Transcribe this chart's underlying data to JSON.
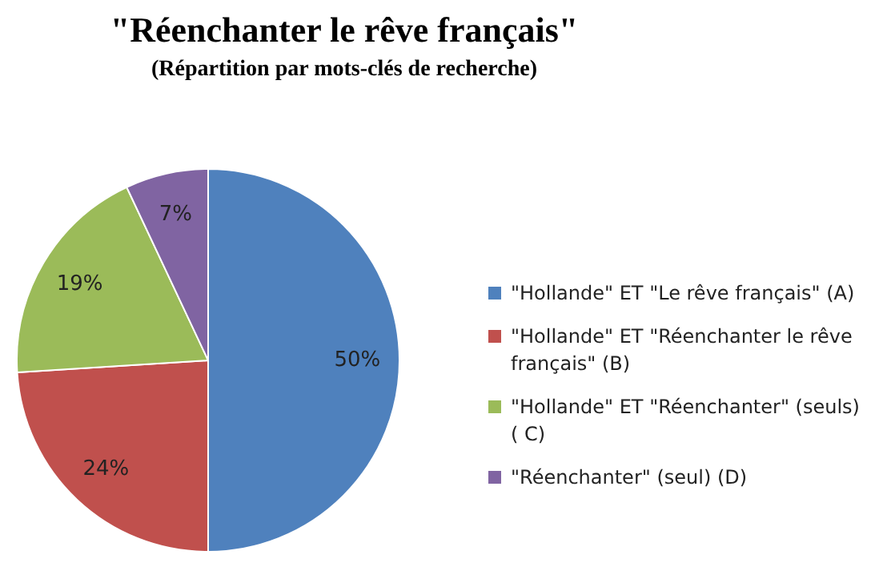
{
  "chart_data": {
    "type": "pie",
    "title": "\"Réenchanter le rêve français\"",
    "subtitle": "(Répartition par mots-clés de recherche)",
    "categories": [
      "\"Hollande\" ET \"Le rêve français\" (A)",
      "\"Hollande\" ET \"Réenchanter le rêve français\" (B)",
      "\"Hollande\" ET \"Réenchanter\" (seuls) ( C)",
      "\"Réenchanter\" (seul) (D)"
    ],
    "values": [
      50,
      24,
      19,
      7
    ],
    "colors": [
      "#4f81bd",
      "#c0504d",
      "#9bbb59",
      "#8064a2"
    ],
    "value_labels": [
      "50%",
      "24%",
      "19%",
      "7%"
    ],
    "legend": "right"
  }
}
